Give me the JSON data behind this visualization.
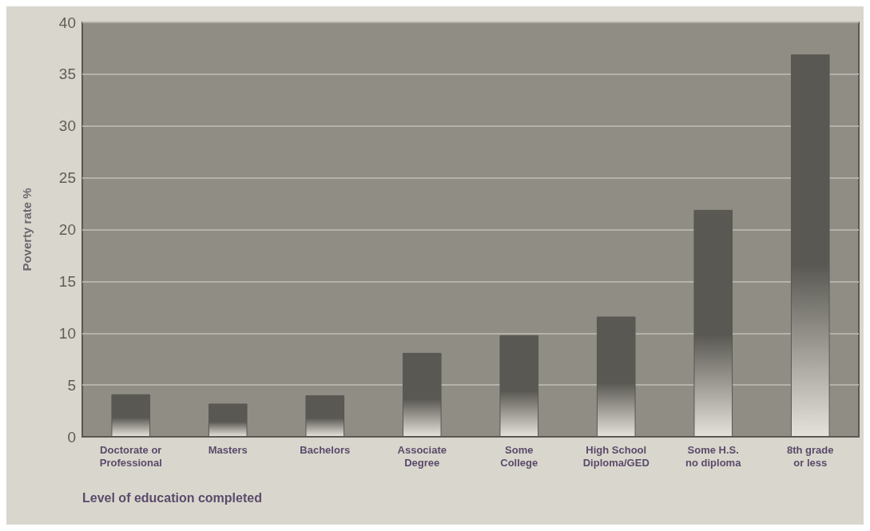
{
  "chart_data": {
    "type": "bar",
    "xlabel": "Level of education completed",
    "ylabel": "Poverty rate %",
    "categories": [
      "Doctorate or\nProfessional",
      "Masters",
      "Bachelors",
      "Associate\nDegree",
      "Some\nCollege",
      "High School\nDiploma/GED",
      "Some H.S.\nno diploma",
      "8th grade\nor less"
    ],
    "values": [
      4.1,
      3.2,
      4.0,
      8.1,
      9.8,
      11.6,
      21.9,
      36.9
    ],
    "color": "#5a5852",
    "ylim": [
      0,
      40
    ],
    "yticks": [
      0,
      5,
      10,
      15,
      20,
      25,
      30,
      35,
      40
    ],
    "grid": "y"
  }
}
